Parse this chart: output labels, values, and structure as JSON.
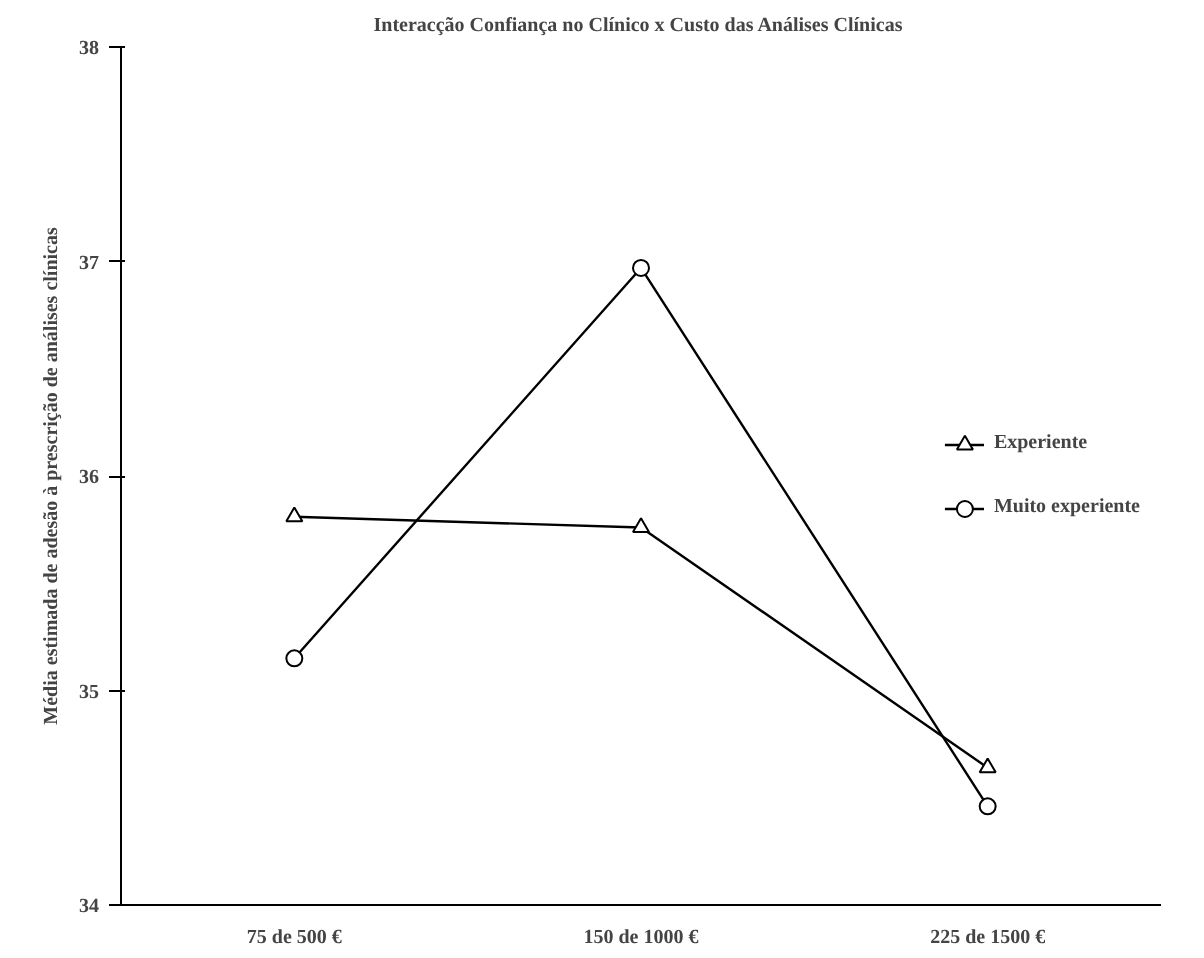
{
  "chart_data": {
    "type": "line",
    "title": "Interacção Confiança  no Clínico x Custo das Análises Clínicas",
    "ylabel": "Média estimada de adesão à prescrição de análises clínicas",
    "categories": [
      "75 de 500 €",
      "150 de 1000 €",
      "225 de 1500 €"
    ],
    "series": [
      {
        "name": "Experiente",
        "color": "#000000",
        "values": [
          35.81,
          35.76,
          34.64
        ],
        "marker": "triangle"
      },
      {
        "name": "Muito experiente",
        "color": "#000000",
        "values": [
          35.15,
          36.97,
          34.46
        ],
        "marker": "circle"
      }
    ],
    "ylim": [
      34,
      38
    ],
    "yticks": [
      34,
      35,
      36,
      37,
      38
    ],
    "grid": false,
    "legend": "right",
    "line_style": "solid"
  }
}
